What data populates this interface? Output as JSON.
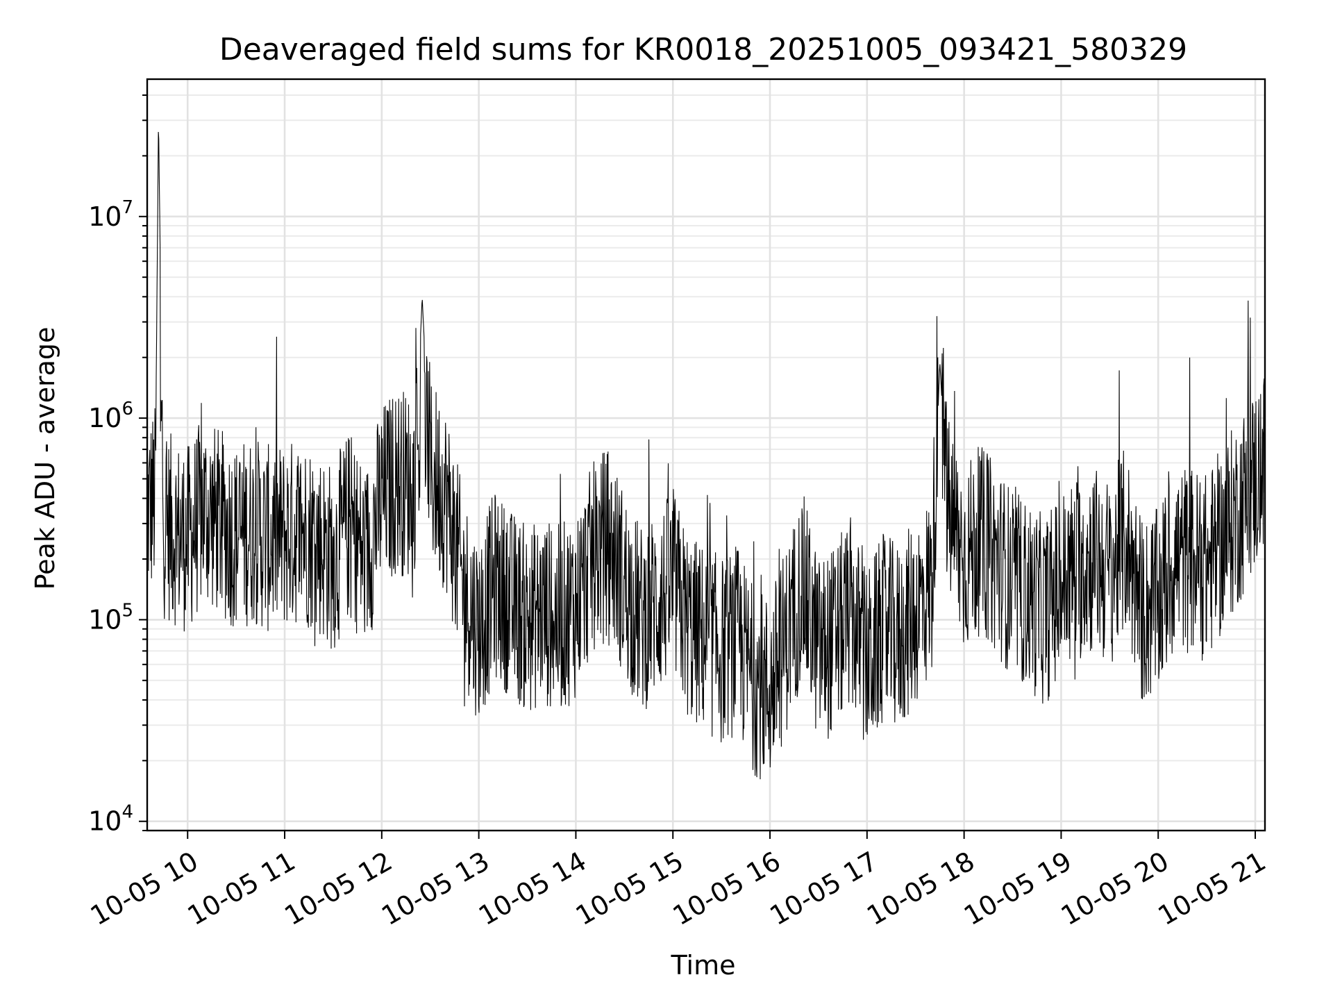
{
  "chart_data": {
    "type": "line",
    "title": "Deaveraged field sums for KR0018_20251005_093421_580329",
    "xlabel": "Time",
    "ylabel": "Peak ADU - average",
    "yscale": "log",
    "xlim": [
      "10-05 09:35",
      "10-05 21:06"
    ],
    "ylim": [
      9000,
      48000000
    ],
    "grid": true,
    "x_ticks": [
      "10-05 10",
      "10-05 11",
      "10-05 12",
      "10-05 13",
      "10-05 14",
      "10-05 15",
      "10-05 16",
      "10-05 17",
      "10-05 18",
      "10-05 19",
      "10-05 20",
      "10-05 21"
    ],
    "y_ticks": [
      {
        "base": "10",
        "exp": "4",
        "value": 10000
      },
      {
        "base": "10",
        "exp": "5",
        "value": 100000
      },
      {
        "base": "10",
        "exp": "6",
        "value": 1000000
      },
      {
        "base": "10",
        "exp": "7",
        "value": 10000000
      }
    ],
    "series": [
      {
        "color": "#000000",
        "x": [
          "10-05 09:35",
          "10-05 09:40",
          "10-05 09:42",
          "10-05 09:45",
          "10-05 10:00",
          "10-05 10:10",
          "10-05 10:20",
          "10-05 10:30",
          "10-05 10:40",
          "10-05 10:50",
          "10-05 11:00",
          "10-05 11:10",
          "10-05 11:20",
          "10-05 11:30",
          "10-05 11:40",
          "10-05 11:50",
          "10-05 12:00",
          "10-05 12:10",
          "10-05 12:20",
          "10-05 12:25",
          "10-05 12:30",
          "10-05 12:40",
          "10-05 12:50",
          "10-05 13:00",
          "10-05 13:10",
          "10-05 13:20",
          "10-05 13:30",
          "10-05 13:40",
          "10-05 13:50",
          "10-05 14:00",
          "10-05 14:10",
          "10-05 14:20",
          "10-05 14:30",
          "10-05 14:40",
          "10-05 14:50",
          "10-05 15:00",
          "10-05 15:10",
          "10-05 15:20",
          "10-05 15:30",
          "10-05 15:40",
          "10-05 15:50",
          "10-05 16:00",
          "10-05 16:10",
          "10-05 16:20",
          "10-05 16:30",
          "10-05 16:40",
          "10-05 16:50",
          "10-05 17:00",
          "10-05 17:10",
          "10-05 17:20",
          "10-05 17:30",
          "10-05 17:40",
          "10-05 17:45",
          "10-05 17:50",
          "10-05 18:00",
          "10-05 18:10",
          "10-05 18:20",
          "10-05 18:30",
          "10-05 18:40",
          "10-05 18:50",
          "10-05 19:00",
          "10-05 19:10",
          "10-05 19:20",
          "10-05 19:30",
          "10-05 19:40",
          "10-05 19:50",
          "10-05 20:00",
          "10-05 20:10",
          "10-05 20:20",
          "10-05 20:30",
          "10-05 20:40",
          "10-05 20:50",
          "10-05 21:00",
          "10-05 21:05"
        ],
        "y": [
          350000,
          400000,
          32000000,
          300000,
          250000,
          350000,
          300000,
          260000,
          280000,
          250000,
          260000,
          280000,
          250000,
          200000,
          300000,
          200000,
          400000,
          500000,
          450000,
          4000000,
          550000,
          400000,
          150000,
          90000,
          150000,
          120000,
          100000,
          110000,
          100000,
          120000,
          200000,
          250000,
          150000,
          100000,
          120000,
          150000,
          90000,
          80000,
          70000,
          80000,
          50000,
          45000,
          80000,
          150000,
          70000,
          80000,
          110000,
          60000,
          90000,
          80000,
          110000,
          150000,
          1900000,
          350000,
          200000,
          250000,
          200000,
          150000,
          130000,
          110000,
          150000,
          180000,
          200000,
          170000,
          250000,
          110000,
          120000,
          200000,
          200000,
          180000,
          250000,
          350000,
          500000,
          600000
        ]
      }
    ]
  }
}
